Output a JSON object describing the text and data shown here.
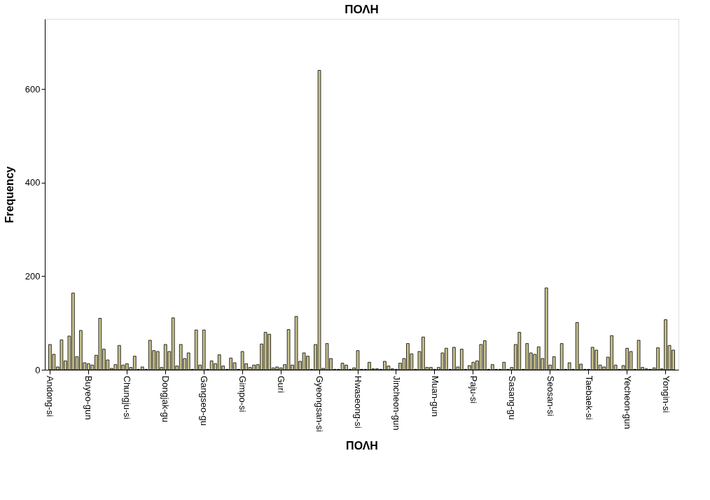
{
  "chart_data": {
    "type": "bar",
    "title": "ΠΟΛΗ",
    "xlabel": "ΠΟΛΗ",
    "ylabel": "Frequency",
    "color": "#c8c28c",
    "categories": [
      "Andong-si",
      null,
      null,
      null,
      null,
      null,
      null,
      null,
      null,
      null,
      "Buyeo-gun",
      null,
      null,
      null,
      null,
      null,
      null,
      null,
      null,
      null,
      "Chungju-si",
      null,
      null,
      null,
      null,
      null,
      null,
      null,
      null,
      null,
      "Dongjak-gu",
      null,
      null,
      null,
      null,
      null,
      null,
      null,
      null,
      null,
      "Gangseo-gu",
      null,
      null,
      null,
      null,
      null,
      null,
      null,
      null,
      null,
      "Gimpo-si",
      null,
      null,
      null,
      null,
      null,
      null,
      null,
      null,
      null,
      "Guri",
      null,
      null,
      null,
      null,
      null,
      null,
      null,
      null,
      null,
      "Gyeongsan-si",
      null,
      null,
      null,
      null,
      null,
      null,
      null,
      null,
      null,
      "Hwaseong-si",
      null,
      null,
      null,
      null,
      null,
      null,
      null,
      null,
      null,
      "Jincheon-gun",
      null,
      null,
      null,
      null,
      null,
      null,
      null,
      null,
      null,
      "Muan-gun",
      null,
      null,
      null,
      null,
      null,
      null,
      null,
      null,
      null,
      "Paju-si",
      null,
      null,
      null,
      null,
      null,
      null,
      null,
      null,
      null,
      "Sasang-gu",
      null,
      null,
      null,
      null,
      null,
      null,
      null,
      null,
      null,
      "Seosan-si",
      null,
      null,
      null,
      null,
      null,
      null,
      null,
      null,
      null,
      "Taebaek-si",
      null,
      null,
      null,
      null,
      null,
      null,
      null,
      null,
      null,
      "Yecheon-gun",
      null,
      null,
      null,
      null,
      null,
      null,
      null,
      null,
      null,
      "Yongin-si",
      null,
      null
    ],
    "values": [
      54,
      33,
      6,
      64,
      19,
      72,
      164,
      28,
      84,
      15,
      13,
      10,
      31,
      110,
      44,
      21,
      3,
      11,
      52,
      10,
      13,
      5,
      29,
      1,
      6,
      1,
      63,
      41,
      39,
      5,
      54,
      39,
      111,
      8,
      54,
      24,
      36,
      1,
      85,
      10,
      85,
      1,
      19,
      13,
      32,
      8,
      1,
      25,
      15,
      1,
      39,
      13,
      5,
      10,
      11,
      55,
      80,
      76,
      4,
      6,
      4,
      11,
      86,
      10,
      114,
      18,
      36,
      29,
      1,
      54,
      640,
      3,
      56,
      24,
      1,
      1,
      14,
      10,
      1,
      4,
      41,
      1,
      1,
      16,
      2,
      2,
      1,
      18,
      8,
      2,
      1,
      14,
      24,
      56,
      34,
      1,
      39,
      70,
      5,
      5,
      1,
      5,
      36,
      46,
      1,
      48,
      6,
      44,
      1,
      9,
      16,
      19,
      54,
      62,
      1,
      11,
      1,
      1,
      16,
      1,
      5,
      54,
      80,
      1,
      56,
      36,
      33,
      49,
      24,
      175,
      10,
      28,
      1,
      56,
      1,
      15,
      1,
      101,
      12,
      1,
      1,
      48,
      42,
      10,
      6,
      27,
      73,
      10,
      1,
      9,
      46,
      39,
      1,
      63,
      5,
      2,
      1,
      4,
      47,
      2,
      107,
      52,
      42
    ],
    "ylim": [
      0,
      750
    ],
    "yticks": [
      0,
      200,
      400,
      600
    ]
  }
}
